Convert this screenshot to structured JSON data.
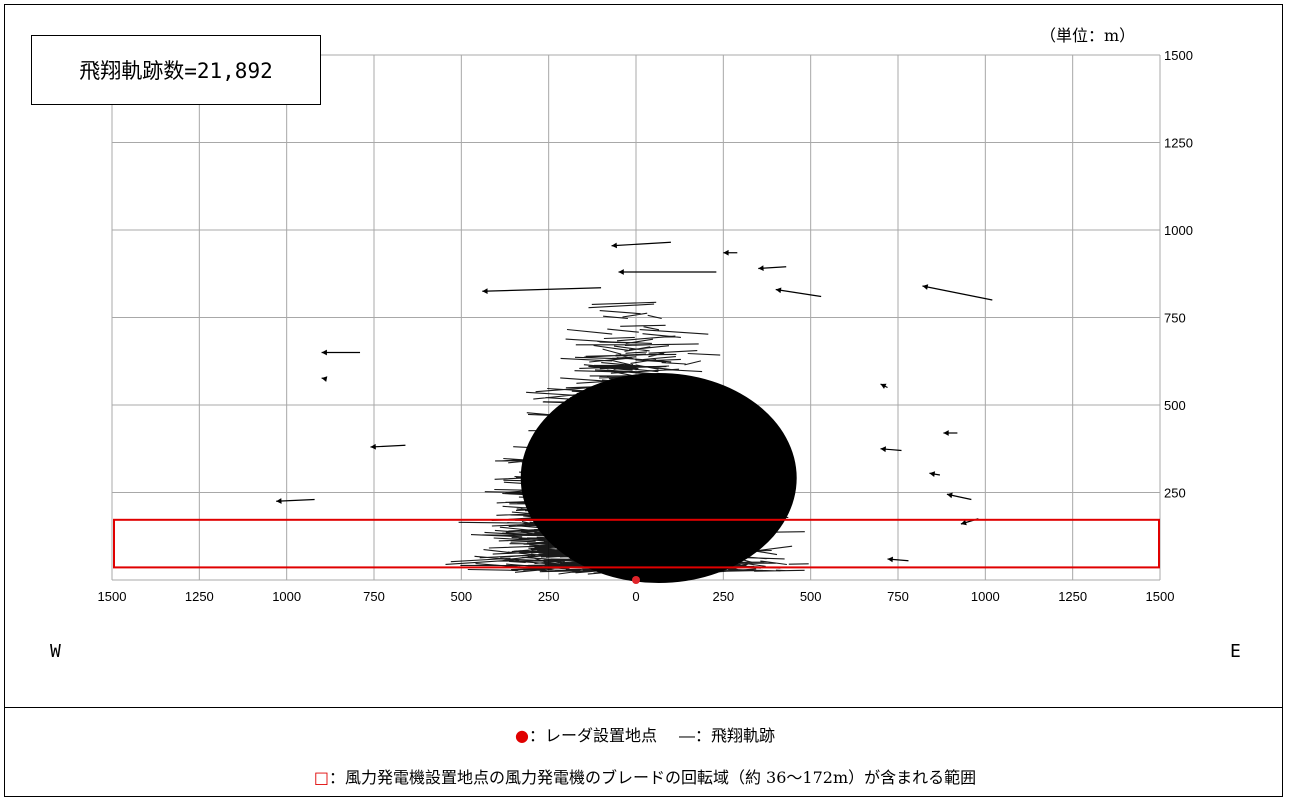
{
  "count_label": "飛翔軌跡数=21,892",
  "unit_label": "（単位：m）",
  "direction": {
    "west": "W",
    "east": "E"
  },
  "legend": {
    "radar_marker": "●",
    "radar_label": "：レーダ設置地点",
    "track_marker": "―",
    "track_label": "：飛翔軌跡",
    "zone_marker": "□",
    "zone_label": "：風力発電機設置地点の風力発電機のブレードの回転域（約 36〜172m）が含まれる範囲"
  },
  "colors": {
    "track": "#000000",
    "radar": "#e0242a",
    "zone": "#e00000",
    "grid": "#a8a8a8"
  },
  "chart_data": {
    "type": "scatter",
    "title": "",
    "xlabel": "",
    "ylabel": "",
    "x_tick_labels": [
      "1500",
      "1250",
      "1000",
      "750",
      "500",
      "250",
      "0",
      "250",
      "500",
      "750",
      "1000",
      "1250",
      "1500"
    ],
    "x_ticks": [
      -1500,
      -1250,
      -1000,
      -750,
      -500,
      -250,
      0,
      250,
      500,
      750,
      1000,
      1250,
      1500
    ],
    "y_ticks": [
      250,
      500,
      750,
      1000,
      1250,
      1500
    ],
    "xlim": [
      -1500,
      1500
    ],
    "ylim": [
      0,
      1500
    ],
    "grid": true,
    "track_count": 21892,
    "radar_point": {
      "x": 0,
      "y": 0
    },
    "rotor_zone": {
      "x_range": [
        -1500,
        1500
      ],
      "y_range": [
        36,
        172
      ]
    },
    "density_core": {
      "x_range": [
        -330,
        460
      ],
      "y_range": [
        20,
        620
      ]
    },
    "sample_tracks": [
      {
        "x1": 100,
        "y1": 965,
        "x2": -70,
        "y2": 955
      },
      {
        "x1": 290,
        "y1": 935,
        "x2": 250,
        "y2": 935
      },
      {
        "x1": 230,
        "y1": 880,
        "x2": -50,
        "y2": 880
      },
      {
        "x1": 430,
        "y1": 895,
        "x2": 350,
        "y2": 890
      },
      {
        "x1": 530,
        "y1": 810,
        "x2": 400,
        "y2": 830
      },
      {
        "x1": -100,
        "y1": 835,
        "x2": -440,
        "y2": 825
      },
      {
        "x1": 1020,
        "y1": 800,
        "x2": 820,
        "y2": 840
      },
      {
        "x1": -790,
        "y1": 650,
        "x2": -900,
        "y2": 650
      },
      {
        "x1": -890,
        "y1": 575,
        "x2": -900,
        "y2": 577
      },
      {
        "x1": -660,
        "y1": 385,
        "x2": -760,
        "y2": 380
      },
      {
        "x1": -920,
        "y1": 230,
        "x2": -1030,
        "y2": 225
      },
      {
        "x1": 920,
        "y1": 420,
        "x2": 880,
        "y2": 420
      },
      {
        "x1": 960,
        "y1": 230,
        "x2": 890,
        "y2": 245
      },
      {
        "x1": 980,
        "y1": 175,
        "x2": 930,
        "y2": 160
      },
      {
        "x1": 870,
        "y1": 300,
        "x2": 840,
        "y2": 305
      },
      {
        "x1": 720,
        "y1": 550,
        "x2": 700,
        "y2": 560
      },
      {
        "x1": 760,
        "y1": 370,
        "x2": 700,
        "y2": 375
      },
      {
        "x1": 780,
        "y1": 55,
        "x2": 720,
        "y2": 60
      }
    ]
  }
}
